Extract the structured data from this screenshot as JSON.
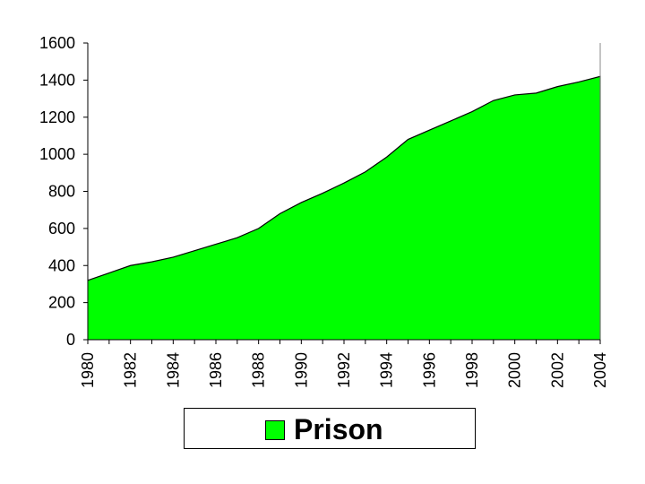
{
  "chart_data": {
    "type": "area",
    "x": [
      1980,
      1981,
      1982,
      1983,
      1984,
      1985,
      1986,
      1987,
      1988,
      1989,
      1990,
      1991,
      1992,
      1993,
      1994,
      1995,
      1996,
      1997,
      1998,
      1999,
      2000,
      2001,
      2002,
      2003,
      2004
    ],
    "series": [
      {
        "name": "Prison",
        "values": [
          320,
          360,
          400,
          420,
          445,
          480,
          515,
          550,
          600,
          680,
          740,
          790,
          845,
          905,
          985,
          1080,
          1130,
          1180,
          1230,
          1290,
          1320,
          1330,
          1365,
          1390,
          1420
        ]
      }
    ],
    "x_tick_labels": [
      "1980",
      "1982",
      "1984",
      "1986",
      "1988",
      "1990",
      "1992",
      "1994",
      "1996",
      "1998",
      "2000",
      "2002",
      "2004"
    ],
    "y_tick_labels": [
      "0",
      "200",
      "400",
      "600",
      "800",
      "1000",
      "1200",
      "1400",
      "1600"
    ],
    "xlim": [
      1980,
      2004
    ],
    "ylim": [
      0,
      1600
    ],
    "grid": false,
    "legend": {
      "position": "bottom",
      "label": "Prison"
    },
    "colors": {
      "fill": "#00FF00",
      "stroke": "#000000"
    }
  }
}
